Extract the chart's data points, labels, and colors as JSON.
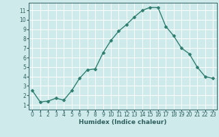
{
  "x": [
    0,
    1,
    2,
    3,
    4,
    5,
    6,
    7,
    8,
    9,
    10,
    11,
    12,
    13,
    14,
    15,
    16,
    17,
    18,
    19,
    20,
    21,
    22,
    23
  ],
  "y": [
    2.5,
    1.3,
    1.4,
    1.7,
    1.5,
    2.5,
    3.8,
    4.7,
    4.8,
    6.5,
    7.8,
    8.8,
    9.5,
    10.3,
    11.0,
    11.3,
    11.3,
    9.3,
    8.3,
    7.0,
    6.4,
    5.0,
    4.0,
    3.8
  ],
  "line_color": "#2e7d6e",
  "marker": "D",
  "marker_size": 2.5,
  "bg_color": "#ceeaea",
  "grid_color": "#ffffff",
  "xlabel": "Humidex (Indice chaleur)",
  "xlim": [
    -0.5,
    23.5
  ],
  "ylim": [
    0.5,
    11.8
  ],
  "xticks": [
    0,
    1,
    2,
    3,
    4,
    5,
    6,
    7,
    8,
    9,
    10,
    11,
    12,
    13,
    14,
    15,
    16,
    17,
    18,
    19,
    20,
    21,
    22,
    23
  ],
  "yticks": [
    1,
    2,
    3,
    4,
    5,
    6,
    7,
    8,
    9,
    10,
    11
  ],
  "tick_color": "#2e5e5e",
  "label_fontsize": 6.5,
  "tick_fontsize": 5.5,
  "line_width": 1.0
}
